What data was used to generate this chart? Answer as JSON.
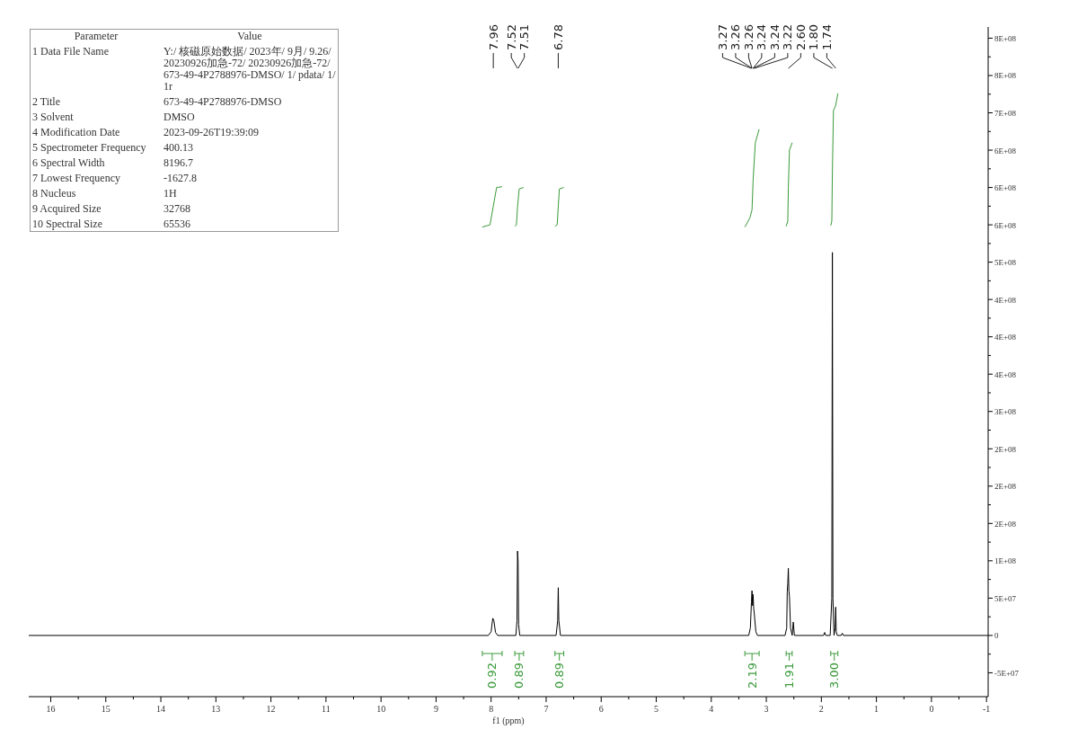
{
  "chart_data": [
    {
      "type": "line",
      "xlabel": "f1 (ppm)",
      "xlim": [
        16.4,
        -1.03
      ],
      "xticks": [
        16,
        15,
        14,
        13,
        12,
        11,
        10,
        9,
        8,
        7,
        6,
        5,
        4,
        3,
        2,
        1,
        0,
        -1
      ],
      "ylim": [
        -82000000.0,
        815000000.0
      ],
      "yticks": [
        {
          "value": -50000000.0,
          "label": "-5E+07"
        },
        0,
        {
          "value": 50000000.0,
          "label": "5E+07"
        },
        {
          "value": 100000000.0,
          "label": "1E+08"
        },
        {
          "value": 150000000.0,
          "label": "2E+08"
        },
        {
          "value": 200000000.0,
          "label": "2E+08"
        },
        {
          "value": 250000000.0,
          "label": "2E+08"
        },
        {
          "value": 300000000.0,
          "label": "3E+08"
        },
        {
          "value": 350000000.0,
          "label": "4E+08"
        },
        {
          "value": 400000000.0,
          "label": "4E+08"
        },
        {
          "value": 450000000.0,
          "label": "4E+08"
        },
        {
          "value": 500000000.0,
          "label": "5E+08"
        },
        {
          "value": 550000000.0,
          "label": "6E+08"
        },
        {
          "value": 600000000.0,
          "label": "6E+08"
        },
        {
          "value": 650000000.0,
          "label": "6E+08"
        },
        {
          "value": 700000000.0,
          "label": "7E+08"
        },
        {
          "value": 750000000.0,
          "label": "8E+08"
        },
        {
          "value": 800000000.0,
          "label": "8E+08"
        }
      ],
      "series": [
        {
          "color": "#000000",
          "x": [
            16.4,
            8.05,
            8.0,
            7.97,
            7.95,
            7.92,
            7.88,
            7.55,
            7.53,
            7.52,
            7.51,
            7.5,
            7.48,
            6.82,
            6.79,
            6.78,
            6.77,
            6.74,
            3.32,
            3.29,
            3.27,
            3.26,
            3.25,
            3.24,
            3.23,
            3.22,
            3.19,
            3.16,
            2.66,
            2.63,
            2.62,
            2.61,
            2.6,
            2.59,
            2.58,
            2.56,
            2.53,
            2.51,
            2.49,
            1.96,
            1.94,
            1.92,
            1.84,
            1.81,
            1.8,
            1.79,
            1.77,
            1.75,
            1.74,
            1.73,
            1.71,
            1.64,
            1.62,
            1.6,
            -1.03
          ],
          "values": [
            0,
            0,
            5000000.0,
            23000000.0,
            20000000.0,
            4000000.0,
            0,
            0,
            20000000.0,
            113000000.0,
            100000000.0,
            15000000.0,
            0,
            0,
            20000000.0,
            64000000.0,
            20000000.0,
            0,
            0,
            10000000.0,
            45000000.0,
            60000000.0,
            40000000.0,
            55000000.0,
            37000000.0,
            30000000.0,
            5000000.0,
            0,
            0,
            10000000.0,
            58000000.0,
            70000000.0,
            90000000.0,
            60000000.0,
            52000000.0,
            10000000.0,
            0,
            18000000.0,
            0,
            0,
            4000000.0,
            0,
            0,
            50000000.0,
            513000000.0,
            50000000.0,
            0,
            10000000.0,
            38000000.0,
            5000000.0,
            0,
            0,
            3000000.0,
            0,
            0
          ]
        },
        {
          "name": "0.92",
          "color": "#3a9a3a",
          "x": [
            8.16,
            8.02,
            7.96,
            7.9,
            7.8
          ],
          "values": [
            547000000.0,
            550000000.0,
            575000000.0,
            600000000.0,
            601000000.0
          ]
        },
        {
          "name": "0.89",
          "color": "#3a9a3a",
          "x": [
            7.57,
            7.54,
            7.52,
            7.49,
            7.41
          ],
          "values": [
            548000000.0,
            550000000.0,
            574000000.0,
            598000000.0,
            600000000.0
          ]
        },
        {
          "name": "0.89",
          "color": "#3a9a3a",
          "x": [
            6.84,
            6.8,
            6.78,
            6.76,
            6.68
          ],
          "values": [
            548000000.0,
            550000000.0,
            574000000.0,
            598000000.0,
            600000000.0
          ]
        },
        {
          "name": "2.19",
          "color": "#3a9a3a",
          "x": [
            3.39,
            3.3,
            3.26,
            3.24,
            3.2,
            3.13
          ],
          "values": [
            547000000.0,
            559000000.0,
            570000000.0,
            610000000.0,
            660000000.0,
            678000000.0
          ]
        },
        {
          "name": "1.91",
          "color": "#3a9a3a",
          "x": [
            2.64,
            2.61,
            2.6,
            2.58,
            2.53
          ],
          "values": [
            548000000.0,
            555000000.0,
            600000000.0,
            650000000.0,
            660000000.0
          ]
        },
        {
          "name": "3.00",
          "color": "#3a9a3a",
          "x": [
            1.83,
            1.81,
            1.8,
            1.78,
            1.74,
            1.7
          ],
          "values": [
            549000000.0,
            555000000.0,
            620000000.0,
            703000000.0,
            710000000.0,
            726000000.0
          ]
        }
      ],
      "legend": "bottom",
      "annotations": [
        {
          "text": "7.96",
          "x": 7.96
        },
        {
          "text": "7.52",
          "x": 7.52
        },
        {
          "text": "7.51",
          "x": 7.51
        },
        {
          "text": "6.78",
          "x": 6.78
        },
        {
          "text": "3.27",
          "x": 3.27
        },
        {
          "text": "3.26",
          "x": 3.26
        },
        {
          "text": "3.26",
          "x": 3.26
        },
        {
          "text": "3.24",
          "x": 3.24
        },
        {
          "text": "3.24",
          "x": 3.24
        },
        {
          "text": "3.22",
          "x": 3.22
        },
        {
          "text": "2.60",
          "x": 2.6
        },
        {
          "text": "1.80",
          "x": 1.8
        },
        {
          "text": "1.74",
          "x": 1.74
        }
      ]
    },
    {
      "type": "other",
      "annotations": [
        "Parameter",
        "Value",
        "1 Data File Name",
        "Y:/ 核磁原始数据/ 2023年/ 9月/ 9.26/ 20230926加急-72/ 20230926加急-72/ 673-49-4P2788976-DMSO/ 1/ pdata/ 1/ 1r",
        "2 Title",
        "673-49-4P2788976-DMSO",
        "3 Solvent",
        "DMSO",
        "4 Modification Date",
        "2023-09-26T19:39:09",
        "5 Spectrometer Frequency",
        "400.13",
        "6 Spectral Width",
        "8196.7",
        "7 Lowest Frequency",
        "-1627.8",
        "8 Nucleus",
        "1H",
        "9 Acquired Size",
        "32768",
        "10 Spectral Size",
        "65536"
      ]
    }
  ]
}
